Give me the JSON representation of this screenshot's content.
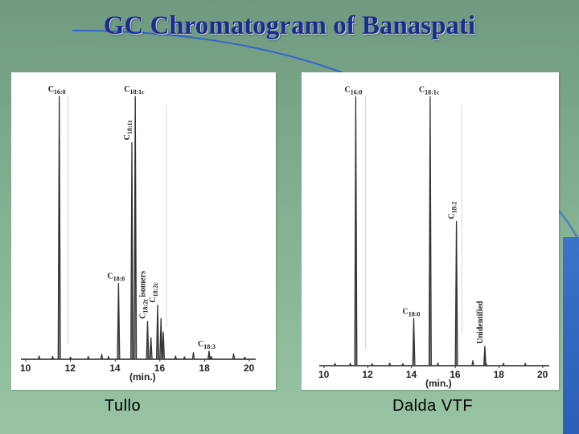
{
  "title": "GC Chromatogram of Banaspati",
  "colors": {
    "title": "#1d2a8f",
    "trace": "#333333",
    "accent": "#2b5fb5"
  },
  "chart_data": [
    {
      "type": "line",
      "caption": "Tullo",
      "xlabel": "(min.)",
      "xlim": [
        10,
        20
      ],
      "ylim": [
        0,
        100
      ],
      "xticks": [
        10,
        12,
        14,
        16,
        18,
        20
      ],
      "baseline_noise": [
        [
          10.6,
          1.2
        ],
        [
          11.2,
          1.0
        ],
        [
          12.0,
          0.8
        ],
        [
          12.8,
          1.0
        ],
        [
          13.4,
          1.8
        ],
        [
          13.7,
          1.0
        ],
        [
          16.7,
          1.2
        ],
        [
          17.1,
          0.9
        ],
        [
          17.5,
          2.5
        ],
        [
          18.3,
          1.0
        ],
        [
          19.3,
          2.0
        ],
        [
          19.8,
          0.8
        ]
      ],
      "peaks": [
        {
          "label": "C16:0",
          "x": 11.5,
          "y": 97,
          "label_dir": "h",
          "show": true
        },
        {
          "label": "C18:0",
          "x": 14.15,
          "y": 28,
          "label_dir": "h",
          "show": true
        },
        {
          "label": "C18:1c",
          "x": 14.9,
          "y": 97,
          "label_dir": "h",
          "show": true
        },
        {
          "label": "C18:1t",
          "x": 14.75,
          "y": 80,
          "label_dir": "v",
          "show": true
        },
        {
          "label": "C18:2t isomers",
          "x": 15.45,
          "y": 14,
          "label_dir": "v",
          "show": true
        },
        {
          "label": "",
          "x": 15.6,
          "y": 8,
          "label_dir": "h",
          "show": false
        },
        {
          "label": "C18:2c",
          "x": 15.9,
          "y": 20,
          "label_dir": "v",
          "show": true
        },
        {
          "label": "",
          "x": 16.05,
          "y": 15,
          "label_dir": "h",
          "show": false
        },
        {
          "label": "",
          "x": 16.15,
          "y": 10,
          "label_dir": "h",
          "show": false
        },
        {
          "label": "C18:3",
          "x": 18.2,
          "y": 3,
          "label_dir": "h",
          "show": true
        }
      ]
    },
    {
      "type": "line",
      "caption": "Dalda VTF",
      "xlabel": "(min.)",
      "xlim": [
        10,
        20
      ],
      "ylim": [
        0,
        100
      ],
      "xticks": [
        10,
        12,
        14,
        16,
        18,
        20
      ],
      "baseline_noise": [
        [
          10.5,
          0.8
        ],
        [
          11.2,
          0.8
        ],
        [
          12.2,
          0.7
        ],
        [
          13.0,
          0.9
        ],
        [
          13.6,
          0.7
        ],
        [
          15.2,
          0.9
        ],
        [
          16.8,
          1.8
        ],
        [
          17.4,
          1.0
        ],
        [
          18.2,
          0.8
        ],
        [
          19.2,
          0.8
        ]
      ],
      "peaks": [
        {
          "label": "C16:0",
          "x": 11.45,
          "y": 97,
          "label_dir": "h",
          "show": true
        },
        {
          "label": "C18:0",
          "x": 14.1,
          "y": 17,
          "label_dir": "h",
          "show": true
        },
        {
          "label": "C18:1c",
          "x": 14.85,
          "y": 97,
          "label_dir": "h",
          "show": true
        },
        {
          "label": "C18:2",
          "x": 16.05,
          "y": 52,
          "label_dir": "v",
          "show": true
        },
        {
          "label": "Unidentified",
          "x": 17.35,
          "y": 7,
          "label_dir": "v",
          "show": true
        }
      ]
    }
  ]
}
